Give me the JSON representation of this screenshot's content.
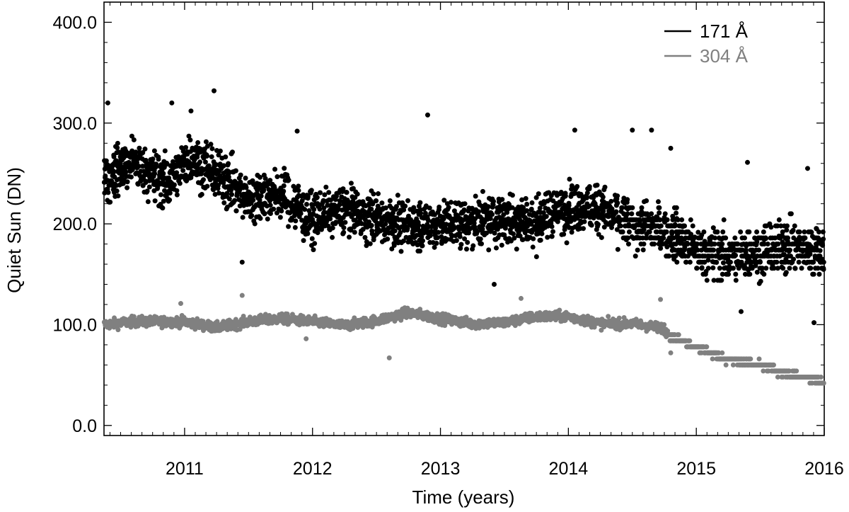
{
  "chart_data": {
    "type": "scatter",
    "xlabel": "Time (years)",
    "ylabel": "Quiet Sun (DN)",
    "xlim": [
      2010.37,
      2016.0
    ],
    "ylim": [
      -10,
      420
    ],
    "xticks": [
      {
        "value": 2011,
        "label": "2011"
      },
      {
        "value": 2012,
        "label": "2012"
      },
      {
        "value": 2013,
        "label": "2013"
      },
      {
        "value": 2014,
        "label": "2014"
      },
      {
        "value": 2015,
        "label": "2015"
      },
      {
        "value": 2016,
        "label": "2016"
      }
    ],
    "yticks": [
      {
        "value": 0,
        "label": "0.0"
      },
      {
        "value": 100,
        "label": "100.0"
      },
      {
        "value": 200,
        "label": "200.0"
      },
      {
        "value": 300,
        "label": "300.0"
      },
      {
        "value": 400,
        "label": "400.0"
      }
    ],
    "legend_position": "top-right",
    "grid": false,
    "series": [
      {
        "name": "171 Å",
        "color": "#000000",
        "trend": [
          [
            2010.37,
            245
          ],
          [
            2010.6,
            262
          ],
          [
            2010.85,
            240
          ],
          [
            2011.05,
            265
          ],
          [
            2011.3,
            245
          ],
          [
            2011.5,
            225
          ],
          [
            2011.75,
            230
          ],
          [
            2012.0,
            205
          ],
          [
            2012.25,
            215
          ],
          [
            2012.5,
            205
          ],
          [
            2012.75,
            198
          ],
          [
            2013.0,
            200
          ],
          [
            2013.25,
            202
          ],
          [
            2013.5,
            205
          ],
          [
            2013.75,
            200
          ],
          [
            2014.0,
            218
          ],
          [
            2014.25,
            215
          ],
          [
            2014.5,
            198
          ],
          [
            2014.75,
            195
          ],
          [
            2015.0,
            175
          ],
          [
            2015.25,
            168
          ],
          [
            2015.5,
            172
          ],
          [
            2015.75,
            178
          ],
          [
            2016.0,
            172
          ]
        ],
        "outliers": [
          [
            2010.4,
            320
          ],
          [
            2010.9,
            320
          ],
          [
            2011.23,
            332
          ],
          [
            2012.9,
            308
          ],
          [
            2011.05,
            312
          ],
          [
            2011.88,
            292
          ],
          [
            2014.05,
            293
          ],
          [
            2014.5,
            293
          ],
          [
            2014.65,
            293
          ],
          [
            2014.8,
            275
          ],
          [
            2015.4,
            261
          ],
          [
            2015.87,
            255
          ],
          [
            2011.45,
            162
          ],
          [
            2013.42,
            140
          ],
          [
            2015.92,
            102
          ],
          [
            2015.35,
            113
          ]
        ]
      },
      {
        "name": "304 Å",
        "color": "#808080",
        "trend": [
          [
            2010.37,
            100
          ],
          [
            2010.6,
            103
          ],
          [
            2011.0,
            103
          ],
          [
            2011.25,
            97
          ],
          [
            2011.5,
            103
          ],
          [
            2011.75,
            106
          ],
          [
            2012.0,
            103
          ],
          [
            2012.25,
            99
          ],
          [
            2012.5,
            104
          ],
          [
            2012.75,
            112
          ],
          [
            2013.0,
            106
          ],
          [
            2013.25,
            101
          ],
          [
            2013.5,
            102
          ],
          [
            2013.75,
            108
          ],
          [
            2014.0,
            108
          ],
          [
            2014.25,
            101
          ],
          [
            2014.5,
            101
          ],
          [
            2014.75,
            96
          ],
          [
            2014.78,
            90
          ],
          [
            2015.0,
            78
          ],
          [
            2015.25,
            65
          ],
          [
            2015.5,
            60
          ],
          [
            2015.75,
            50
          ],
          [
            2016.0,
            44
          ]
        ],
        "outliers": [
          [
            2010.97,
            121
          ],
          [
            2011.45,
            129
          ],
          [
            2013.63,
            126
          ],
          [
            2014.72,
            125
          ],
          [
            2012.6,
            67
          ],
          [
            2014.8,
            72
          ],
          [
            2011.95,
            86
          ]
        ]
      }
    ]
  }
}
